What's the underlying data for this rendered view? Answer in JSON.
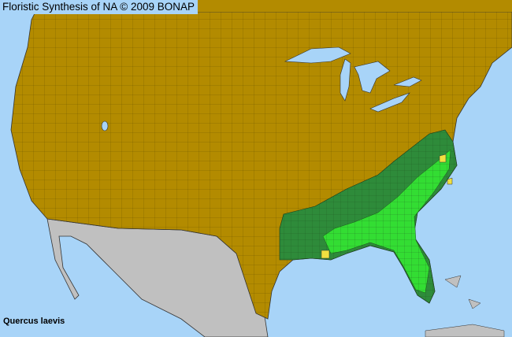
{
  "title": "Floristic Synthesis of NA © 2009 BONAP",
  "species": "Quercus laevis",
  "colors": {
    "ocean": "#a8d4f8",
    "land_absent": "#b38b00",
    "outside_region": "#c0c0c0",
    "county_present": "#33dd33",
    "state_present": "#2e8b3a",
    "rare": "#f0e040",
    "borders": "#333333"
  }
}
